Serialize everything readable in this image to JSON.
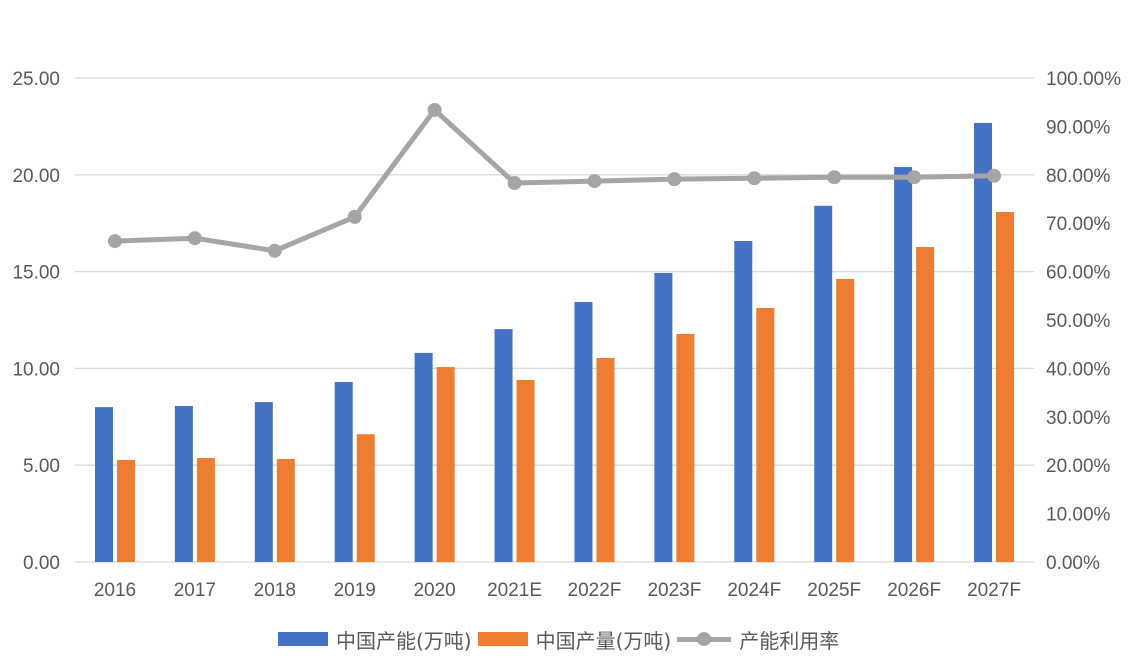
{
  "chart_data": {
    "type": "bar",
    "combo": "bar+line (dual axis)",
    "title": "",
    "categories": [
      "2016",
      "2017",
      "2018",
      "2019",
      "2020",
      "2021E",
      "2022F",
      "2023F",
      "2024F",
      "2025F",
      "2026F",
      "2027F"
    ],
    "series": [
      {
        "name": "中国产能(万吨)",
        "type": "bar",
        "axis": "left",
        "color": "#4472C4",
        "values": [
          8.0,
          8.06,
          8.26,
          9.3,
          10.8,
          12.03,
          13.43,
          14.93,
          16.58,
          18.4,
          20.4,
          22.68
        ]
      },
      {
        "name": "中国产量(万吨)",
        "type": "bar",
        "axis": "left",
        "color": "#ED7D31",
        "values": [
          5.27,
          5.37,
          5.32,
          6.6,
          10.07,
          9.4,
          10.54,
          11.78,
          13.12,
          14.62,
          16.27,
          18.08
        ]
      },
      {
        "name": "产能利用率",
        "type": "line",
        "axis": "right",
        "color": "#A5A5A5",
        "values": [
          66.3,
          66.9,
          64.3,
          71.3,
          93.4,
          78.3,
          78.7,
          79.1,
          79.3,
          79.5,
          79.5,
          79.8
        ]
      }
    ],
    "xlabel": "",
    "ylabel": "",
    "ylim": [
      0,
      25
    ],
    "y2lim": [
      0,
      100
    ],
    "yticks": [
      "0.00",
      "5.00",
      "10.00",
      "15.00",
      "20.00",
      "25.00"
    ],
    "y2ticks": [
      "0.00%",
      "10.00%",
      "20.00%",
      "30.00%",
      "40.00%",
      "50.00%",
      "60.00%",
      "70.00%",
      "80.00%",
      "90.00%",
      "100.00%"
    ],
    "grid": true,
    "legend_position": "bottom"
  },
  "legend": [
    {
      "label": "中国产能(万吨)",
      "kind": "bar",
      "color": "#4472C4"
    },
    {
      "label": "中国产量(万吨)",
      "kind": "bar",
      "color": "#ED7D31"
    },
    {
      "label": "产能利用率",
      "kind": "line",
      "color": "#A5A5A5"
    }
  ]
}
